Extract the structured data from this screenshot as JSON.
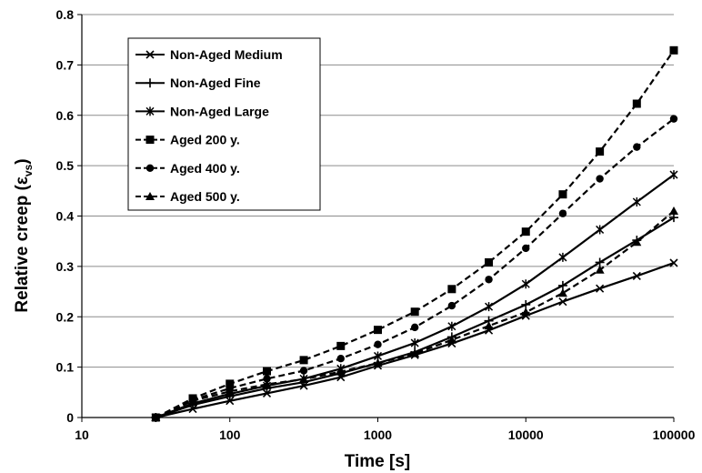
{
  "chart_data": {
    "type": "line",
    "title": "",
    "xlabel": "Time [s]",
    "ylabel_main": "Relative creep (ε",
    "ylabel_sub": "vs",
    "ylabel_end": ")",
    "x_scale": "log",
    "xlim": [
      10,
      100000
    ],
    "ylim": [
      0,
      0.8
    ],
    "x_ticks": [
      10,
      100,
      1000,
      10000,
      100000
    ],
    "x_tick_labels": [
      "10",
      "100",
      "1000",
      "10000",
      "100000"
    ],
    "y_ticks": [
      0,
      0.1,
      0.2,
      0.3,
      0.4,
      0.5,
      0.6,
      0.7,
      0.8
    ],
    "y_tick_labels": [
      "0",
      "0.1",
      "0.2",
      "0.3",
      "0.4",
      "0.5",
      "0.6",
      "0.7",
      "0.8"
    ],
    "grid": "horizontal",
    "legend_position": "top-left",
    "x": [
      31.6,
      56.2,
      100,
      178,
      316,
      562,
      1000,
      1778,
      3162,
      5623,
      10000,
      17783,
      31623,
      56234,
      100000
    ],
    "series": [
      {
        "name": "Non-Aged Medium",
        "marker": "x",
        "dash": "solid",
        "values": [
          0,
          0.017,
          0.033,
          0.048,
          0.063,
          0.08,
          0.103,
          0.124,
          0.147,
          0.173,
          0.202,
          0.23,
          0.256,
          0.281,
          0.307
        ]
      },
      {
        "name": "Non-Aged Fine",
        "marker": "plus",
        "dash": "solid",
        "values": [
          0,
          0.025,
          0.042,
          0.058,
          0.07,
          0.088,
          0.108,
          0.13,
          0.16,
          0.192,
          0.224,
          0.262,
          0.308,
          0.352,
          0.397
        ]
      },
      {
        "name": "Non-Aged Large",
        "marker": "star",
        "dash": "solid",
        "values": [
          0,
          0.028,
          0.047,
          0.063,
          0.077,
          0.097,
          0.122,
          0.148,
          0.181,
          0.22,
          0.265,
          0.318,
          0.373,
          0.428,
          0.482
        ]
      },
      {
        "name": "Aged 200 y.",
        "marker": "square",
        "dash": "dashed",
        "values": [
          0,
          0.038,
          0.067,
          0.092,
          0.114,
          0.142,
          0.174,
          0.21,
          0.255,
          0.308,
          0.369,
          0.443,
          0.528,
          0.623,
          0.729
        ]
      },
      {
        "name": "Aged 400 y.",
        "marker": "circle",
        "dash": "dashed",
        "values": [
          0,
          0.035,
          0.058,
          0.077,
          0.093,
          0.117,
          0.145,
          0.179,
          0.222,
          0.274,
          0.336,
          0.405,
          0.474,
          0.537,
          0.593
        ]
      },
      {
        "name": "Aged 500 y.",
        "marker": "triangle",
        "dash": "dashed",
        "values": [
          0,
          0.033,
          0.052,
          0.066,
          0.076,
          0.091,
          0.108,
          0.127,
          0.154,
          0.182,
          0.209,
          0.247,
          0.293,
          0.348,
          0.41
        ]
      }
    ]
  }
}
